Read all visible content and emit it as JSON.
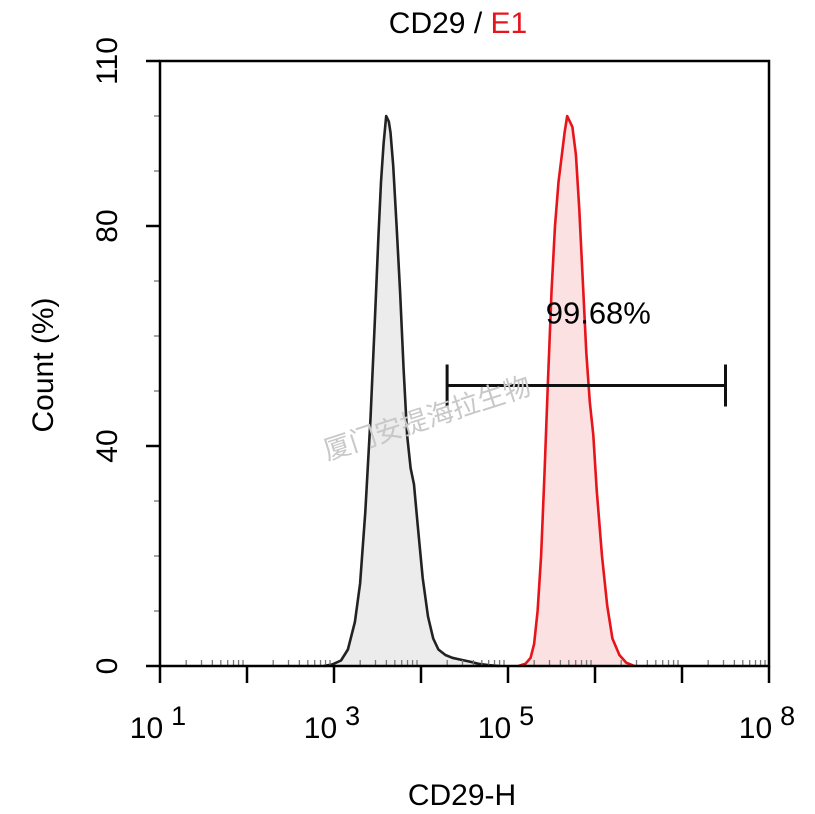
{
  "chart_data": {
    "type": "area",
    "title": {
      "part1": "CD29",
      "separator": " / ",
      "part2": "E1",
      "part1_color": "#000000",
      "part2_color": "#e8141b"
    },
    "xlabel": "CD29-H",
    "ylabel": "Count  (%)",
    "x_scale": "log10",
    "xlim_exp": [
      1,
      8
    ],
    "ylim": [
      0,
      110
    ],
    "y_ticks": [
      {
        "value": 0,
        "label": "0"
      },
      {
        "value": 40,
        "label": "40"
      },
      {
        "value": 80,
        "label": "80"
      },
      {
        "value": 110,
        "label": "110"
      }
    ],
    "x_ticks": [
      {
        "exp": 1,
        "base": "10",
        "sup": "1"
      },
      {
        "exp": 3,
        "base": "10",
        "sup": "3"
      },
      {
        "exp": 5,
        "base": "10",
        "sup": "5"
      },
      {
        "exp": 8,
        "base": "10",
        "sup": "8"
      }
    ],
    "series": [
      {
        "name": "CD29",
        "color": "#222222",
        "fill": "#ececec",
        "points": [
          [
            2.88,
            0
          ],
          [
            2.98,
            0.3
          ],
          [
            3.08,
            1
          ],
          [
            3.16,
            3
          ],
          [
            3.24,
            8
          ],
          [
            3.3,
            15
          ],
          [
            3.36,
            28
          ],
          [
            3.42,
            45
          ],
          [
            3.47,
            63
          ],
          [
            3.51,
            78
          ],
          [
            3.54,
            88
          ],
          [
            3.57,
            95
          ],
          [
            3.6,
            100
          ],
          [
            3.63,
            99
          ],
          [
            3.65,
            97
          ],
          [
            3.68,
            91
          ],
          [
            3.72,
            80
          ],
          [
            3.76,
            68
          ],
          [
            3.8,
            54
          ],
          [
            3.84,
            42
          ],
          [
            3.88,
            36
          ],
          [
            3.92,
            33
          ],
          [
            3.96,
            26
          ],
          [
            4.02,
            16
          ],
          [
            4.08,
            9
          ],
          [
            4.14,
            5
          ],
          [
            4.2,
            3
          ],
          [
            4.28,
            2
          ],
          [
            4.36,
            1.5
          ],
          [
            4.44,
            1.2
          ],
          [
            4.5,
            1
          ],
          [
            4.56,
            0.8
          ],
          [
            4.66,
            0.4
          ],
          [
            4.78,
            0.15
          ],
          [
            4.9,
            0
          ]
        ]
      },
      {
        "name": "E1",
        "color": "#e8141b",
        "fill": "#fbe1e1",
        "points": [
          [
            5.12,
            0
          ],
          [
            5.2,
            0.4
          ],
          [
            5.26,
            1.5
          ],
          [
            5.3,
            4
          ],
          [
            5.34,
            10
          ],
          [
            5.38,
            20
          ],
          [
            5.42,
            35
          ],
          [
            5.46,
            52
          ],
          [
            5.5,
            68
          ],
          [
            5.54,
            80
          ],
          [
            5.58,
            88
          ],
          [
            5.62,
            93
          ],
          [
            5.65,
            97
          ],
          [
            5.68,
            100
          ],
          [
            5.71,
            99
          ],
          [
            5.74,
            98
          ],
          [
            5.78,
            93
          ],
          [
            5.82,
            83
          ],
          [
            5.86,
            70
          ],
          [
            5.9,
            57
          ],
          [
            5.94,
            48
          ],
          [
            5.98,
            42
          ],
          [
            6.02,
            32
          ],
          [
            6.08,
            20
          ],
          [
            6.14,
            11
          ],
          [
            6.2,
            5
          ],
          [
            6.28,
            2
          ],
          [
            6.36,
            0.6
          ],
          [
            6.45,
            0
          ]
        ]
      }
    ],
    "gate": {
      "label": "99.68%",
      "x_start_exp": 4.3,
      "x_end_exp": 7.5,
      "y_value": 51
    },
    "watermark": "厦门安提海拉生物"
  }
}
